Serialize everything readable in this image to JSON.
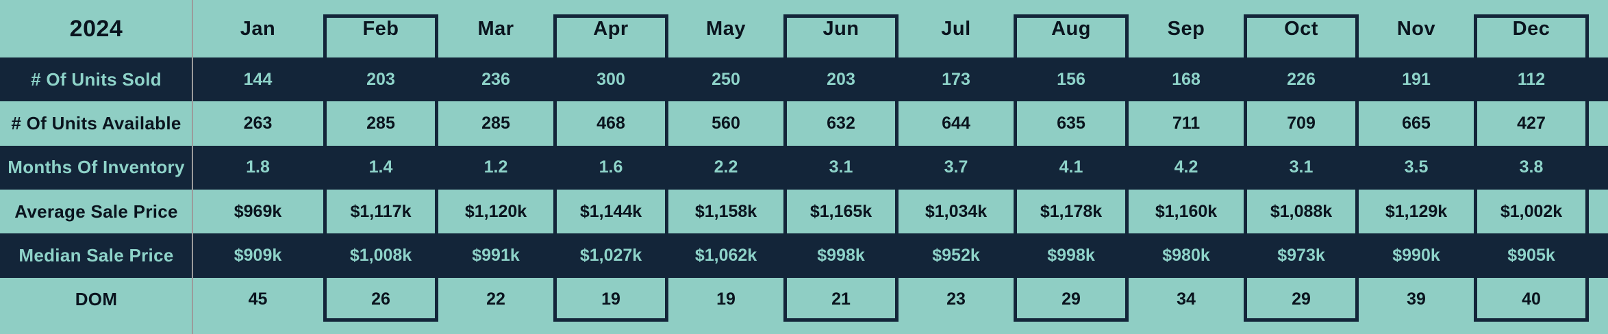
{
  "title": {
    "year": "2024"
  },
  "columns": {
    "months": [
      "Jan",
      "Feb",
      "Mar",
      "Apr",
      "May",
      "Jun",
      "Jul",
      "Aug",
      "Sep",
      "Oct",
      "Nov",
      "Dec"
    ],
    "highlighted_months": [
      "Feb",
      "Apr",
      "Jun",
      "Aug",
      "Oct",
      "Dec"
    ]
  },
  "rows": [
    {
      "label": "# Of Units Sold",
      "values": [
        "144",
        "203",
        "236",
        "300",
        "250",
        "203",
        "173",
        "156",
        "168",
        "226",
        "191",
        "112"
      ]
    },
    {
      "label": "# Of Units Available",
      "values": [
        "263",
        "285",
        "285",
        "468",
        "560",
        "632",
        "644",
        "635",
        "711",
        "709",
        "665",
        "427"
      ]
    },
    {
      "label": "Months Of Inventory",
      "values": [
        "1.8",
        "1.4",
        "1.2",
        "1.6",
        "2.2",
        "3.1",
        "3.7",
        "4.1",
        "4.2",
        "3.1",
        "3.5",
        "3.8"
      ]
    },
    {
      "label": "Average Sale Price",
      "values": [
        "$969k",
        "$1,117k",
        "$1,120k",
        "$1,144k",
        "$1,158k",
        "$1,165k",
        "$1,034k",
        "$1,178k",
        "$1,160k",
        "$1,088k",
        "$1,129k",
        "$1,002k"
      ]
    },
    {
      "label": "Median Sale Price",
      "values": [
        "$909k",
        "$1,008k",
        "$991k",
        "$1,027k",
        "$1,062k",
        "$998k",
        "$952k",
        "$998k",
        "$980k",
        "$973k",
        "$990k",
        "$905k"
      ]
    },
    {
      "label": "DOM",
      "values": [
        "45",
        "26",
        "22",
        "19",
        "19",
        "21",
        "23",
        "29",
        "34",
        "29",
        "39",
        "40"
      ]
    }
  ],
  "colors": {
    "background_teal": "#8FCEC4",
    "band_navy": "#132539",
    "light_teal_text": "#8ED3C9",
    "dark_text": "#0A141E",
    "divider_gray": "#9B9B9B"
  },
  "chart_data": {
    "type": "table",
    "title": "2024",
    "categories": [
      "Jan",
      "Feb",
      "Mar",
      "Apr",
      "May",
      "Jun",
      "Jul",
      "Aug",
      "Sep",
      "Oct",
      "Nov",
      "Dec"
    ],
    "series": [
      {
        "name": "# Of Units Sold",
        "values": [
          144,
          203,
          236,
          300,
          250,
          203,
          173,
          156,
          168,
          226,
          191,
          112
        ]
      },
      {
        "name": "# Of Units Available",
        "values": [
          263,
          285,
          285,
          468,
          560,
          632,
          644,
          635,
          711,
          709,
          665,
          427
        ]
      },
      {
        "name": "Months Of Inventory",
        "values": [
          1.8,
          1.4,
          1.2,
          1.6,
          2.2,
          3.1,
          3.7,
          4.1,
          4.2,
          3.1,
          3.5,
          3.8
        ]
      },
      {
        "name": "Average Sale Price ($k)",
        "values": [
          969,
          1117,
          1120,
          1144,
          1158,
          1165,
          1034,
          1178,
          1160,
          1088,
          1129,
          1002
        ]
      },
      {
        "name": "Median Sale Price ($k)",
        "values": [
          909,
          1008,
          991,
          1027,
          1062,
          998,
          952,
          998,
          980,
          973,
          990,
          905
        ]
      },
      {
        "name": "DOM",
        "values": [
          45,
          26,
          22,
          19,
          19,
          21,
          23,
          29,
          34,
          29,
          39,
          40
        ]
      }
    ],
    "layout_hints": {
      "grid": "boxed outlines around even months (Feb, Apr, Jun, Aug, Oct, Dec)",
      "row_striping": "alternating navy / teal bands",
      "legend_position": "none"
    }
  }
}
